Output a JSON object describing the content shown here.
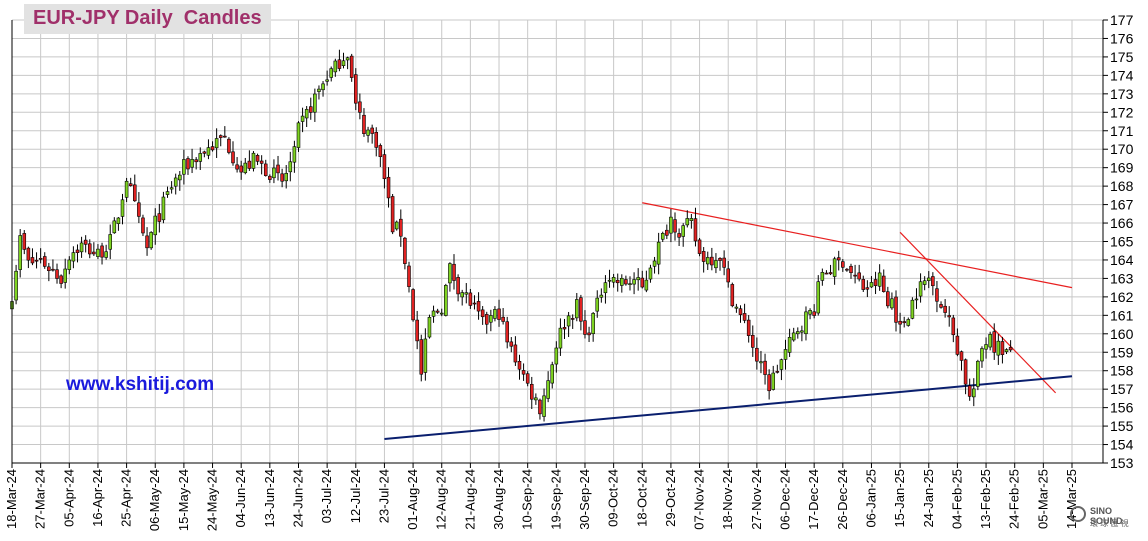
{
  "title": "EUR-JPY Daily  Candles",
  "watermark": "www.kshitij.com",
  "logo": {
    "name": "SINO SOUND",
    "subtitle": "環 球 匯 視"
  },
  "colors": {
    "up": "#7ed321",
    "down": "#e02222",
    "grid": "#c8c8c8",
    "resistance": "#e82020",
    "support": "#0a1f6e",
    "title": "#a0306a"
  },
  "chart_data": {
    "type": "candlestick",
    "title": "EUR-JPY Daily  Candles",
    "ylim": [
      153,
      177
    ],
    "y_axis_position": "right",
    "grid": true,
    "yticks": [
      153,
      154,
      155,
      156,
      157,
      158,
      159,
      160,
      161,
      162,
      163,
      164,
      165,
      166,
      167,
      168,
      169,
      170,
      171,
      172,
      173,
      174,
      175,
      176,
      177
    ],
    "xticks": [
      "18-Mar-24",
      "27-Mar-24",
      "05-Apr-24",
      "16-Apr-24",
      "25-Apr-24",
      "06-May-24",
      "15-May-24",
      "24-May-24",
      "04-Jun-24",
      "13-Jun-24",
      "24-Jun-24",
      "03-Jul-24",
      "12-Jul-24",
      "23-Jul-24",
      "01-Aug-24",
      "12-Aug-24",
      "21-Aug-24",
      "30-Aug-24",
      "10-Sep-24",
      "19-Sep-24",
      "30-Sep-24",
      "09-Oct-24",
      "18-Oct-24",
      "29-Oct-24",
      "07-Nov-24",
      "18-Nov-24",
      "27-Nov-24",
      "06-Dec-24",
      "17-Dec-24",
      "26-Dec-24",
      "06-Jan-25",
      "15-Jan-25",
      "24-Jan-25",
      "04-Feb-25",
      "13-Feb-25",
      "24-Feb-25",
      "05-Mar-25",
      "14-Mar-25"
    ],
    "price_path": [
      [
        "18-Mar-24",
        162.2
      ],
      [
        "20-Mar-24",
        165.1
      ],
      [
        "22-Mar-24",
        163.8
      ],
      [
        "27-Mar-24",
        164.0
      ],
      [
        "03-Apr-24",
        163.0
      ],
      [
        "05-Apr-24",
        164.3
      ],
      [
        "10-Apr-24",
        164.8
      ],
      [
        "16-Apr-24",
        164.3
      ],
      [
        "19-Apr-24",
        165.0
      ],
      [
        "23-Apr-24",
        166.5
      ],
      [
        "25-Apr-24",
        168.5
      ],
      [
        "30-Apr-24",
        166.0
      ],
      [
        "02-May-24",
        164.6
      ],
      [
        "06-May-24",
        166.0
      ],
      [
        "10-May-24",
        168.0
      ],
      [
        "15-May-24",
        169.0
      ],
      [
        "20-May-24",
        169.6
      ],
      [
        "24-May-24",
        170.2
      ],
      [
        "29-May-24",
        170.6
      ],
      [
        "04-Jun-24",
        168.8
      ],
      [
        "07-Jun-24",
        169.4
      ],
      [
        "13-Jun-24",
        168.8
      ],
      [
        "18-Jun-24",
        168.2
      ],
      [
        "21-Jun-24",
        169.7
      ],
      [
        "24-Jun-24",
        171.0
      ],
      [
        "28-Jun-24",
        172.8
      ],
      [
        "03-Jul-24",
        174.0
      ],
      [
        "05-Jul-24",
        174.4
      ],
      [
        "08-Jul-24",
        174.8
      ],
      [
        "10-Jul-24",
        175.3
      ],
      [
        "12-Jul-24",
        172.3
      ],
      [
        "16-Jul-24",
        171.2
      ],
      [
        "19-Jul-24",
        170.5
      ],
      [
        "23-Jul-24",
        168.4
      ],
      [
        "25-Jul-24",
        165.8
      ],
      [
        "29-Jul-24",
        165.5
      ],
      [
        "31-Jul-24",
        162.5
      ],
      [
        "02-Aug-24",
        159.5
      ],
      [
        "05-Aug-24",
        157.8
      ],
      [
        "07-Aug-24",
        160.8
      ],
      [
        "12-Aug-24",
        161.5
      ],
      [
        "14-Aug-24",
        163.5
      ],
      [
        "16-Aug-24",
        162.6
      ],
      [
        "21-Aug-24",
        161.7
      ],
      [
        "26-Aug-24",
        160.5
      ],
      [
        "30-Aug-24",
        161.2
      ],
      [
        "03-Sep-24",
        159.5
      ],
      [
        "06-Sep-24",
        158.3
      ],
      [
        "10-Sep-24",
        157.2
      ],
      [
        "13-Sep-24",
        156.0
      ],
      [
        "17-Sep-24",
        157.5
      ],
      [
        "19-Sep-24",
        159.5
      ],
      [
        "23-Sep-24",
        160.6
      ],
      [
        "26-Sep-24",
        161.5
      ],
      [
        "30-Sep-24",
        159.8
      ],
      [
        "03-Oct-24",
        161.5
      ],
      [
        "07-Oct-24",
        163.2
      ],
      [
        "11-Oct-24",
        162.7
      ],
      [
        "16-Oct-24",
        162.9
      ],
      [
        "18-Oct-24",
        162.4
      ],
      [
        "22-Oct-24",
        163.8
      ],
      [
        "25-Oct-24",
        165.2
      ],
      [
        "29-Oct-24",
        166.3
      ],
      [
        "31-Oct-24",
        165.6
      ],
      [
        "05-Nov-24",
        165.9
      ],
      [
        "07-Nov-24",
        164.3
      ],
      [
        "11-Nov-24",
        164.1
      ],
      [
        "14-Nov-24",
        164.3
      ],
      [
        "18-Nov-24",
        162.5
      ],
      [
        "21-Nov-24",
        160.9
      ],
      [
        "25-Nov-24",
        160.1
      ],
      [
        "27-Nov-24",
        158.6
      ],
      [
        "29-Nov-24",
        157.6
      ],
      [
        "02-Dec-24",
        157.2
      ],
      [
        "06-Dec-24",
        159.0
      ],
      [
        "11-Dec-24",
        160.3
      ],
      [
        "13-Dec-24",
        160.9
      ],
      [
        "17-Dec-24",
        161.4
      ],
      [
        "19-Dec-24",
        163.4
      ],
      [
        "23-Dec-24",
        163.5
      ],
      [
        "26-Dec-24",
        164.0
      ],
      [
        "30-Dec-24",
        163.3
      ],
      [
        "02-Jan-25",
        162.5
      ],
      [
        "06-Jan-25",
        162.5
      ],
      [
        "08-Jan-25",
        163.0
      ],
      [
        "10-Jan-25",
        161.5
      ],
      [
        "13-Jan-25",
        161.9
      ],
      [
        "15-Jan-25",
        160.2
      ],
      [
        "17-Jan-25",
        161.2
      ],
      [
        "21-Jan-25",
        162.3
      ],
      [
        "24-Jan-25",
        163.0
      ],
      [
        "28-Jan-25",
        162.2
      ],
      [
        "30-Jan-25",
        161.2
      ],
      [
        "03-Feb-25",
        160.0
      ],
      [
        "05-Feb-25",
        158.5
      ],
      [
        "07-Feb-25",
        156.5
      ],
      [
        "10-Feb-25",
        157.0
      ],
      [
        "12-Feb-25",
        159.2
      ],
      [
        "14-Feb-25",
        160.1
      ],
      [
        "17-Feb-25",
        159.4
      ],
      [
        "19-Feb-25",
        159.2
      ],
      [
        "21-Feb-25",
        158.8
      ]
    ],
    "trendlines": [
      {
        "role": "resistance",
        "color": "#e82020",
        "from": [
          "18-Oct-24",
          167.1
        ],
        "to": [
          "14-Mar-25",
          162.5
        ]
      },
      {
        "role": "resistance",
        "color": "#e82020",
        "from": [
          "15-Jan-25",
          165.5
        ],
        "to": [
          "08-Mar-25",
          156.8
        ]
      },
      {
        "role": "support",
        "color": "#0a1f6e",
        "from": [
          "23-Jul-24",
          154.3
        ],
        "to": [
          "14-Mar-25",
          157.7
        ]
      }
    ]
  }
}
